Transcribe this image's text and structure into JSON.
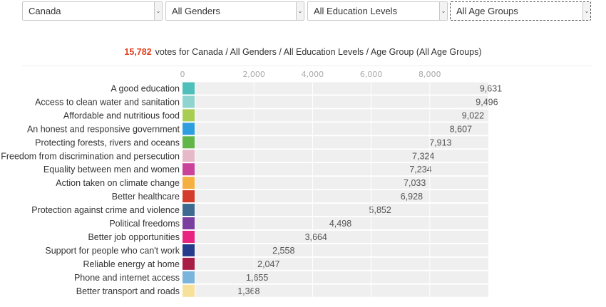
{
  "filters": {
    "country": "Canada",
    "gender": "All Genders",
    "education": "All Education Levels",
    "age": "All Age Groups"
  },
  "summary": {
    "count": "15,782",
    "text": "votes for Canada / All Genders / All Education Levels / Age Group (All Age Groups)"
  },
  "chart_data": {
    "type": "bar",
    "orientation": "horizontal",
    "xlim": [
      0,
      10000
    ],
    "ticks": [
      "0",
      "2,000",
      "4,000",
      "6,000",
      "8,000"
    ],
    "tick_values": [
      0,
      2000,
      4000,
      6000,
      8000
    ],
    "categories": [
      "A good education",
      "Access to clean water and sanitation",
      "Affordable and nutritious food",
      "An honest and responsive government",
      "Protecting forests, rivers and oceans",
      "Freedom from discrimination and persecution",
      "Equality between men and women",
      "Action taken on climate change",
      "Better healthcare",
      "Protection against crime and violence",
      "Political freedoms",
      "Better job opportunities",
      "Support for people who can't work",
      "Reliable energy at home",
      "Phone and internet access",
      "Better transport and roads"
    ],
    "values": [
      9631,
      9496,
      9022,
      8607,
      7913,
      7324,
      7234,
      7033,
      6928,
      5852,
      4498,
      3664,
      2558,
      2047,
      1655,
      1368
    ],
    "value_labels": [
      "9,631",
      "9,496",
      "9,022",
      "8,607",
      "7,913",
      "7,324",
      "7,234",
      "7,033",
      "6,928",
      "5,852",
      "4,498",
      "3,664",
      "2,558",
      "2,047",
      "1,655",
      "1,368"
    ],
    "colors": [
      "#4ebfb9",
      "#8fd4cf",
      "#a9cc53",
      "#2f9ee0",
      "#62b548",
      "#e6b9c8",
      "#c9439a",
      "#f6b042",
      "#d43b2b",
      "#3f6a8f",
      "#7b3fa0",
      "#e8237f",
      "#233b8a",
      "#a81d45",
      "#7ab3db",
      "#f7e09a"
    ],
    "track_color": "#efefef",
    "grid": true
  }
}
